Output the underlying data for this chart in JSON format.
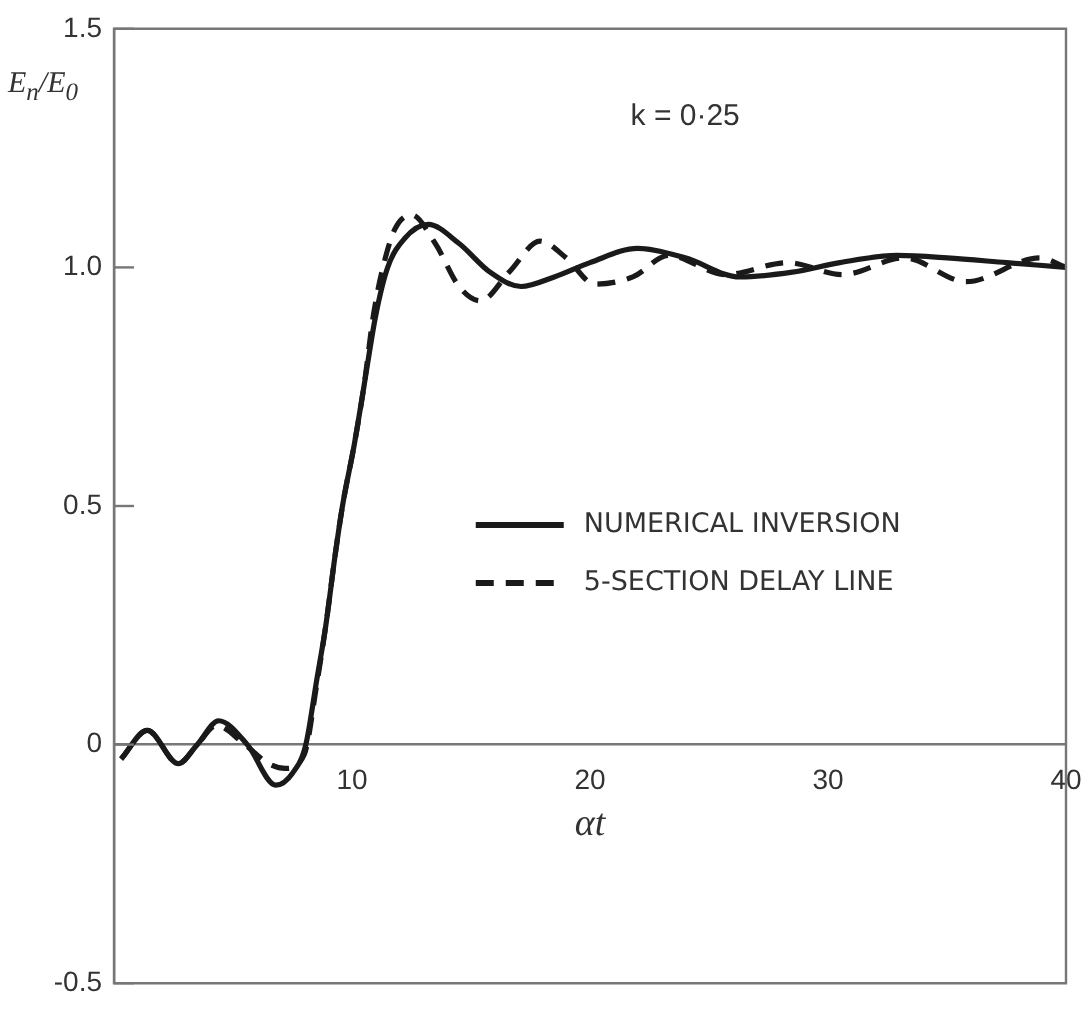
{
  "chart_data": {
    "type": "line",
    "xlabel": "αt",
    "ylabel": "E$_{n}$/E$_{0}$",
    "annotations": [
      "k = 0·25"
    ],
    "xlim": [
      0,
      40
    ],
    "xticks": [
      10,
      20,
      30,
      40
    ],
    "ylim": [
      -0.5,
      1.5
    ],
    "yticks": [
      -0.5,
      0,
      0.5,
      {
        "value": 1,
        "label": "1.0"
      },
      1.5
    ],
    "grid": false,
    "legend": "right",
    "marker": "none",
    "series": [
      {
        "name": "NUMERICAL INVERSION",
        "color": "#1a1a1a",
        "line_style": "solid",
        "x": [
          0.3,
          1.4,
          2.7,
          3.5,
          4.4,
          5.6,
          6.8,
          7.5,
          8.06,
          8.5,
          8.9,
          9.3,
          9.6,
          10.1,
          10.5,
          11.0,
          11.5,
          12.2,
          13.2,
          14.5,
          15.8,
          17.1,
          18.5,
          20,
          22,
          24,
          26.3,
          28.5,
          30.5,
          32.9,
          35,
          37.5,
          40
        ],
        "values": [
          -0.03,
          0.03,
          -0.04,
          0.0,
          0.05,
          0.0,
          -0.085,
          -0.06,
          0,
          0.13,
          0.25,
          0.4,
          0.5,
          0.63,
          0.75,
          0.9,
          1.0,
          1.06,
          1.09,
          1.05,
          0.99,
          0.96,
          0.98,
          1.01,
          1.04,
          1.02,
          0.98,
          0.99,
          1.01,
          1.025,
          1.02,
          1.01,
          1.0
        ]
      },
      {
        "name": "5-SECTION DELAY LINE",
        "color": "#1a1a1a",
        "line_style": "dashed",
        "x": [
          0.3,
          1.4,
          2.7,
          3.5,
          4.3,
          5.5,
          6.5,
          7.2,
          8.0,
          8.5,
          8.9,
          9.3,
          9.6,
          10.1,
          10.5,
          10.9,
          11.3,
          11.8,
          12.5,
          13.5,
          14.5,
          15.4,
          16.6,
          17.9,
          19.0,
          20.2,
          21.8,
          23.3,
          25.7,
          28.3,
          30.6,
          33.2,
          35.8,
          38.9,
          40
        ],
        "values": [
          -0.03,
          0.03,
          -0.04,
          0.0,
          0.04,
          0.0,
          -0.04,
          -0.05,
          -0.02,
          0.12,
          0.25,
          0.4,
          0.5,
          0.63,
          0.75,
          0.9,
          1.0,
          1.08,
          1.11,
          1.05,
          0.96,
          0.93,
          0.99,
          1.055,
          1.02,
          0.965,
          0.98,
          1.025,
          0.985,
          1.01,
          0.985,
          1.02,
          0.97,
          1.02,
          1.0
        ]
      }
    ]
  }
}
